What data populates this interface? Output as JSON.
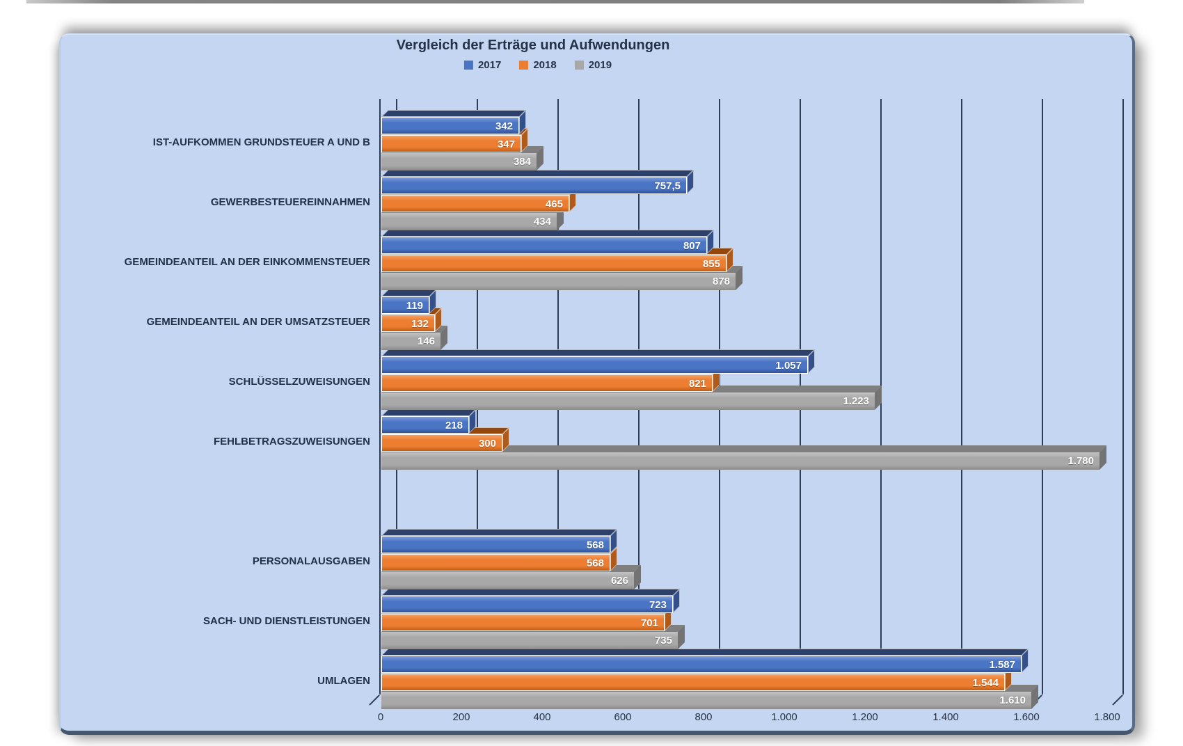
{
  "title": "Vergleich der Erträge und Aufwendungen",
  "legend": [
    {
      "label": "2017",
      "color": "#4a74c4"
    },
    {
      "label": "2018",
      "color": "#ed7d31"
    },
    {
      "label": "2019",
      "color": "#a8a8a8"
    }
  ],
  "panel": {
    "background": "#c4d6f1",
    "gridline_color": "#2e3c56",
    "text_color": "#263247"
  },
  "chart_data": {
    "type": "bar",
    "orientation": "horizontal",
    "title": "Vergleich der Erträge und Aufwendungen",
    "xlabel": "",
    "ylabel": "",
    "xlim": [
      0,
      1800
    ],
    "tick_step": 200,
    "xtick_labels": [
      "0",
      "200",
      "400",
      "600",
      "800",
      "1.000",
      "1.200",
      "1.400",
      "1.600",
      "1.800"
    ],
    "grid": true,
    "legend_position": "top",
    "blank_row_after_index": 5,
    "categories": [
      "IST-AUFKOMMEN GRUNDSTEUER A UND B",
      "GEWERBESTEUEREINNAHMEN",
      "GEMEINDEANTEIL AN DER EINKOMMENSTEUER",
      "GEMEINDEANTEIL AN DER UMSATZSTEUER",
      "SCHLÜSSELZUWEISUNGEN",
      "FEHLBETRAGSZUWEISUNGEN",
      "PERSONALAUSGABEN",
      "SACH- UND DIENSTLEISTUNGEN",
      "UMLAGEN"
    ],
    "series": [
      {
        "name": "2017",
        "values": [
          342,
          757.5,
          807,
          119,
          1057,
          218,
          568,
          723,
          1587
        ],
        "value_labels": [
          "342",
          "757,5",
          "807",
          "119",
          "1.057",
          "218",
          "568",
          "723",
          "1.587"
        ],
        "colors": {
          "main": "#4a74c4",
          "light": "#7d9cda",
          "dark": "#2f5299",
          "top_face": "#2c4069",
          "end_face": "#34508a",
          "outline": "#ffffff"
        }
      },
      {
        "name": "2018",
        "values": [
          347,
          465,
          855,
          132,
          821,
          300,
          568,
          701,
          1544
        ],
        "value_labels": [
          "347",
          "465",
          "855",
          "132",
          "821",
          "300",
          "568",
          "701",
          "1.544"
        ],
        "colors": {
          "main": "#ed7d31",
          "light": "#f5a063",
          "dark": "#bf5c12",
          "top_face": "#94480e",
          "end_face": "#b05a1a",
          "outline": "#ffffff"
        }
      },
      {
        "name": "2019",
        "values": [
          384,
          434,
          878,
          146,
          1223,
          1780,
          626,
          735,
          1610
        ],
        "value_labels": [
          "384",
          "434",
          "878",
          "146",
          "1.223",
          "1.780",
          "626",
          "735",
          "1.610"
        ],
        "colors": {
          "main": "#a8a8a8",
          "light": "#c3c3c3",
          "dark": "#8b8b8b",
          "top_face": "#7f7f7f",
          "end_face": "#737373",
          "outline": null
        }
      }
    ]
  }
}
